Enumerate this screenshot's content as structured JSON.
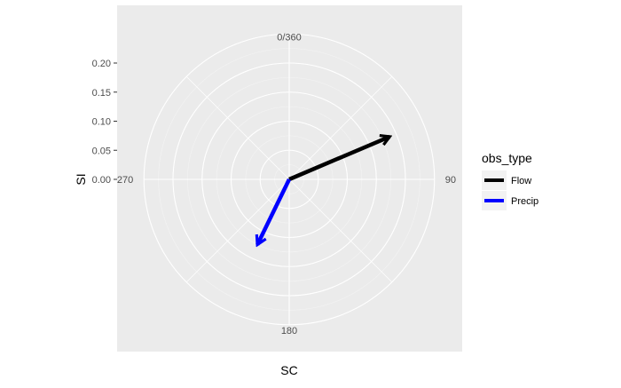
{
  "chart_data": {
    "type": "polar-vector",
    "xlabel": "SC",
    "ylabel": "SI",
    "angle_ticks": [
      {
        "angle": 0,
        "label": "0/360"
      },
      {
        "angle": 90,
        "label": "90"
      },
      {
        "angle": 180,
        "label": "180"
      },
      {
        "angle": 270,
        "label": "270"
      }
    ],
    "radial_ticks": [
      0.0,
      0.05,
      0.1,
      0.15,
      0.2
    ],
    "radial_tick_labels": [
      "0.00",
      "0.05",
      "0.10",
      "0.15",
      "0.20"
    ],
    "rlim": [
      0,
      0.25
    ],
    "grid": true,
    "legend": {
      "title": "obs_type",
      "position": "right",
      "entries": [
        {
          "name": "Flow",
          "color": "#000000"
        },
        {
          "name": "Precip",
          "color": "#0000ff"
        }
      ]
    },
    "series": [
      {
        "name": "Flow",
        "color": "#000000",
        "angle": 67,
        "magnitude": 0.188
      },
      {
        "name": "Precip",
        "color": "#0000ff",
        "angle": 206,
        "magnitude": 0.125
      }
    ]
  }
}
